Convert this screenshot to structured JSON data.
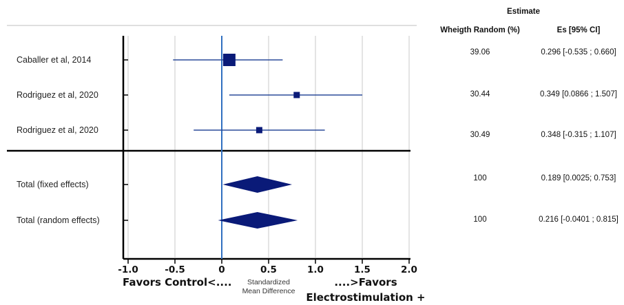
{
  "chart_data": {
    "type": "forest",
    "header": {
      "group": "Estimate",
      "weight_col": "Wheigth Random (%)",
      "es_col": "Es [95% CI]"
    },
    "xlim": [
      -1.0,
      2.0
    ],
    "xticks": [
      "-1.0",
      "-0.5",
      "0",
      "0.5",
      "1.0",
      "1.5",
      "2.0"
    ],
    "xtick_values": [
      -1.0,
      -0.5,
      0,
      0.5,
      1.0,
      1.5,
      2.0
    ],
    "xlabel": "Standardized Mean Difference",
    "xlabel_line1": "Standardized",
    "xlabel_line2": "Mean Difference",
    "favors_left": "Favors Control<....",
    "favors_right_line1": "....>Favors",
    "favors_right_line2": "Electrostimulation +",
    "grid": true,
    "studies": [
      {
        "label": "Caballer et al, 2014",
        "es": 0.08,
        "lo": -0.52,
        "hi": 0.65,
        "weight": "39.06",
        "es_text": "0.296 [-0.535 ; 0.660]"
      },
      {
        "label": "Rodriguez et al, 2020",
        "es": 0.8,
        "lo": 0.08,
        "hi": 1.5,
        "weight": "30.44",
        "es_text": "0.349 [0.0866 ; 1.507]"
      },
      {
        "label": "Rodriguez et al, 2020",
        "es": 0.4,
        "lo": -0.3,
        "hi": 1.1,
        "weight": "30.49",
        "es_text": "0.348 [-0.315 ; 1.107]"
      }
    ],
    "totals": [
      {
        "label": "Total (fixed effects)",
        "es": 0.38,
        "lo": 0.01,
        "hi": 0.75,
        "weight": "100",
        "es_text": "0.189 [0.0025; 0.753]"
      },
      {
        "label": "Total (random effects)",
        "es": 0.38,
        "lo": -0.04,
        "hi": 0.81,
        "weight": "100",
        "es_text": "0.216 [-0.0401 ; 0.815]"
      }
    ],
    "colors": {
      "marker": "#0a1a78",
      "ci_line": "#2a4a9a",
      "grid": "#c8c8c8",
      "axis": "#000000",
      "zero_line": "#2f6fc0"
    }
  }
}
